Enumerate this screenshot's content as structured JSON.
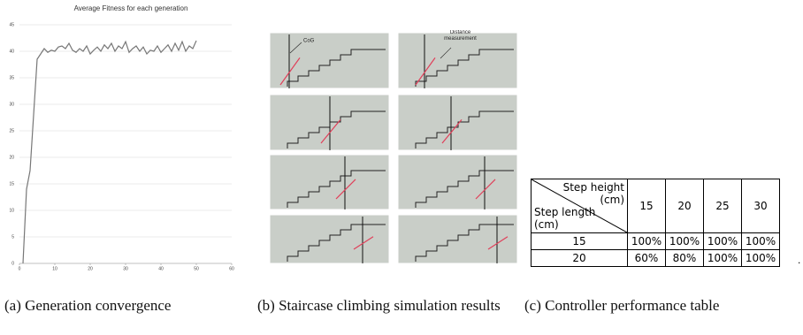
{
  "chart_data": {
    "type": "line",
    "title": "Average Fitness for each generation",
    "x": [
      1,
      2,
      3,
      4,
      5,
      6,
      7,
      8,
      9,
      10,
      11,
      12,
      13,
      14,
      15,
      16,
      17,
      18,
      19,
      20,
      21,
      22,
      23,
      24,
      25,
      26,
      27,
      28,
      29,
      30,
      31,
      32,
      33,
      34,
      35,
      36,
      37,
      38,
      39,
      40,
      41,
      42,
      43,
      44,
      45,
      46,
      47,
      48,
      49,
      50
    ],
    "series": [
      {
        "name": "Average Fitness",
        "color": "#777777",
        "values": [
          0,
          14,
          17.5,
          28,
          38.5,
          39.5,
          40.5,
          39.8,
          40.2,
          40,
          40.8,
          41,
          40.5,
          41.5,
          40.2,
          39.8,
          40.5,
          40,
          41,
          39.5,
          40.2,
          40.8,
          40,
          41.2,
          40.5,
          41.5,
          40,
          41,
          40.5,
          41.8,
          39.8,
          40.5,
          41,
          40,
          40.8,
          39.5,
          40.2,
          40,
          41,
          39.8,
          40.5,
          41.2,
          40,
          41.5,
          40.2,
          41.8,
          40,
          41,
          40.5,
          42
        ]
      }
    ],
    "xlim": [
      0,
      60
    ],
    "xticks": [
      0,
      10,
      20,
      30,
      40,
      50,
      60
    ],
    "ylim": [
      0,
      45
    ],
    "yticks": [
      0,
      5,
      10,
      15,
      20,
      25,
      30,
      35,
      40,
      45
    ],
    "grid": true
  },
  "panels": {
    "labels": [
      "CoG",
      "Distance measurement"
    ]
  },
  "table": {
    "corner_top": "Step height (cm)",
    "corner_bottom": "Step length (cm)",
    "columns": [
      "15",
      "20",
      "25",
      "30"
    ],
    "rows": [
      {
        "label": "15",
        "cells": [
          "100%",
          "100%",
          "100%",
          "100%"
        ]
      },
      {
        "label": "20",
        "cells": [
          "60%",
          "80%",
          "100%",
          "100%"
        ]
      }
    ]
  },
  "captions": [
    "(a) Generation convergence",
    "(b) Staircase climbing simulation results",
    "(c) Controller performance table"
  ]
}
